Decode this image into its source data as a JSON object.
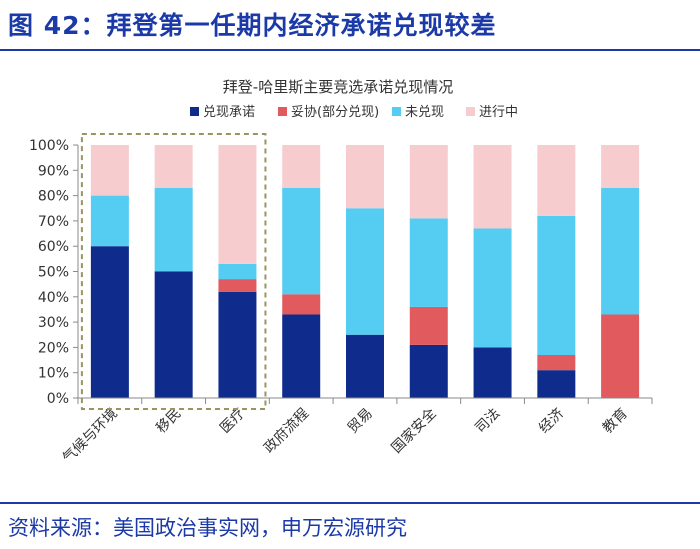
{
  "figure": {
    "title": "图 42：拜登第一任期内经济承诺兑现较差",
    "source": "资料来源：美国政治事实网，申万宏源研究"
  },
  "chart_data": {
    "type": "bar",
    "stacked": true,
    "title": "拜登-哈里斯主要竞选承诺兑现情况",
    "categories": [
      "气候与环境",
      "移民",
      "医疗",
      "政府流程",
      "贸易",
      "国家安全",
      "司法",
      "经济",
      "教育"
    ],
    "series": [
      {
        "name": "兑现承诺",
        "color": "#0f2c8c",
        "values": [
          60,
          50,
          42,
          33,
          25,
          21,
          20,
          11,
          0
        ]
      },
      {
        "name": "妥协(部分兑现)",
        "color": "#e05a5e",
        "values": [
          0,
          0,
          5,
          8,
          0,
          15,
          0,
          6,
          33
        ]
      },
      {
        "name": "未兑现",
        "color": "#55ccf2",
        "values": [
          20,
          33,
          6,
          42,
          50,
          35,
          47,
          55,
          50
        ]
      },
      {
        "name": "进行中",
        "color": "#f6cccf",
        "values": [
          20,
          17,
          47,
          17,
          25,
          29,
          33,
          28,
          17
        ]
      }
    ],
    "y_ticks": [
      "0%",
      "10%",
      "20%",
      "30%",
      "40%",
      "50%",
      "60%",
      "70%",
      "80%",
      "90%",
      "100%"
    ],
    "ylim": [
      0,
      100
    ],
    "legend_position": "top",
    "highlight_box_categories": [
      "气候与环境",
      "移民",
      "医疗"
    ],
    "grid": false
  }
}
